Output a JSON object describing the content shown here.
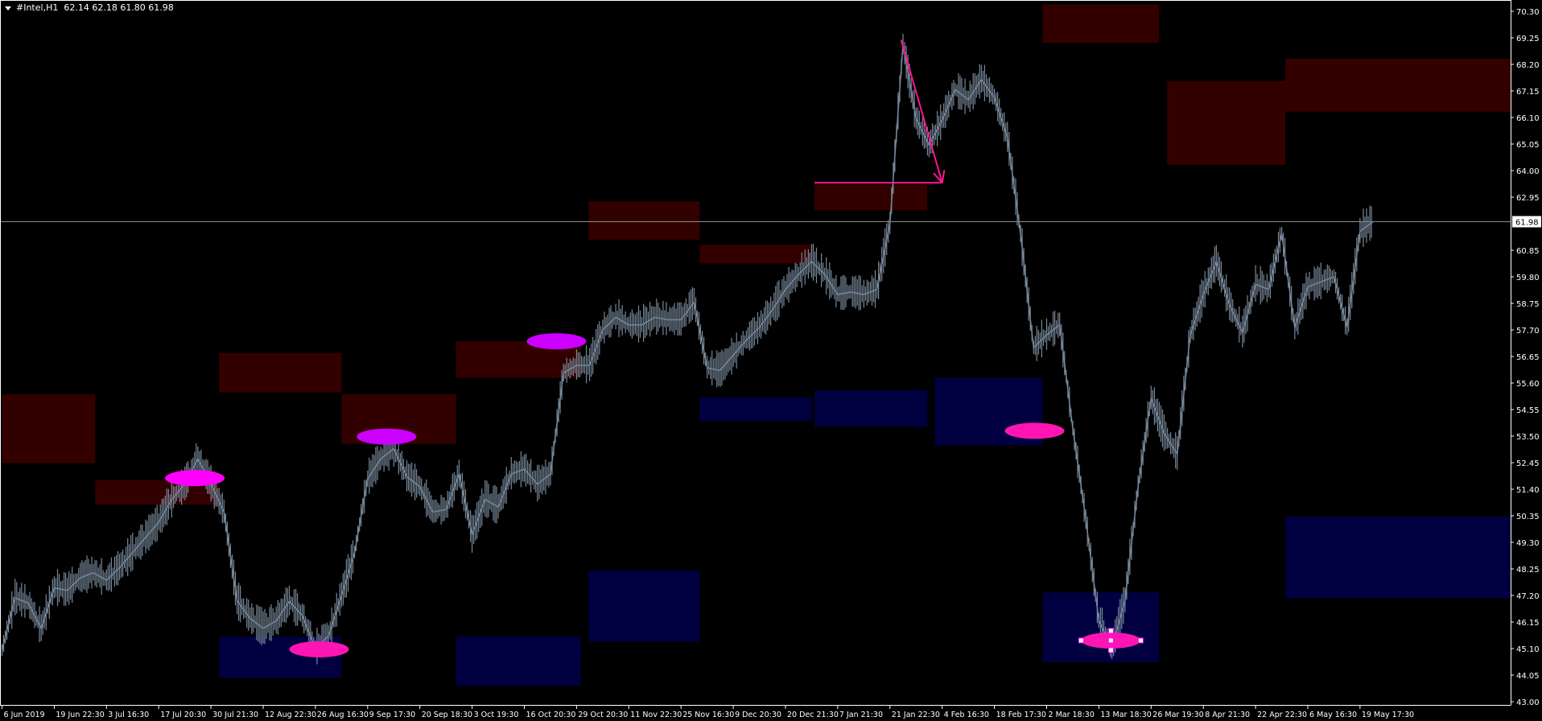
{
  "header": {
    "symbol": "#Intel,H1",
    "ohlc": "62.14 62.18 61.80 61.98"
  },
  "colors": {
    "background": "#000000",
    "price_line": "#778899",
    "up_highlight": "#00ff00",
    "supply_zone": "#330000",
    "demand_zone": "#000040",
    "magenta": "#ff00ff",
    "pink": "#ff14b4",
    "violet": "#cc00ff",
    "arrow": "#ff1493",
    "current_price_line": "#8c8c8c"
  },
  "chart_data": {
    "type": "line",
    "title": "#Intel,H1",
    "ylim": [
      43.0,
      70.3
    ],
    "y_ticks": [
      "70.30",
      "69.25",
      "68.20",
      "67.15",
      "66.10",
      "65.05",
      "64.00",
      "62.95",
      "60.85",
      "59.80",
      "58.75",
      "57.70",
      "56.65",
      "55.60",
      "54.55",
      "53.50",
      "52.45",
      "51.40",
      "50.35",
      "49.30",
      "48.25",
      "47.20",
      "46.15",
      "45.10",
      "44.05",
      "43.00"
    ],
    "current_price": "61.98",
    "x_ticks": [
      "6 Jun 2019",
      "19 Jun 22:30",
      "3 Jul 16:30",
      "17 Jul 20:30",
      "30 Jul 21:30",
      "12 Aug 22:30",
      "26 Aug 16:30",
      "9 Sep 17:30",
      "20 Sep 18:30",
      "3 Oct 19:30",
      "16 Oct 20:30",
      "29 Oct 20:30",
      "11 Nov 22:30",
      "25 Nov 16:30",
      "9 Dec 20:30",
      "20 Dec 21:30",
      "7 Jan 21:30",
      "21 Jan 22:30",
      "4 Feb 16:30",
      "18 Feb 17:30",
      "2 Mar 18:30",
      "13 Mar 18:30",
      "26 Mar 19:30",
      "8 Apr 21:30",
      "22 Apr 22:30",
      "6 May 16:30",
      "19 May 17:30"
    ],
    "price_by_interval": [
      [
        45.03,
        47.1,
        46.9,
        45.9
      ],
      [
        47.5,
        47.4,
        47.9,
        48.1
      ],
      [
        47.8,
        48.3,
        48.9,
        49.5
      ],
      [
        50.1,
        51.0,
        51.6,
        52.6
      ],
      [
        51.6,
        50.5,
        47.0,
        46.3
      ],
      [
        45.9,
        46.2,
        46.97,
        46.4
      ],
      [
        45.1,
        45.6,
        47.2,
        48.9
      ],
      [
        51.8,
        52.6,
        53.0,
        51.9
      ],
      [
        51.5,
        50.5,
        50.6,
        52.0
      ],
      [
        49.6,
        51.0,
        50.7,
        52.0
      ],
      [
        52.2,
        51.6,
        52.0,
        56.0
      ],
      [
        56.3,
        56.3,
        57.7,
        58.2
      ],
      [
        57.9,
        57.9,
        58.2,
        58.1
      ],
      [
        58.1,
        58.8,
        56.2,
        56.1
      ],
      [
        56.7,
        57.3,
        57.8,
        58.5
      ],
      [
        59.3,
        59.9,
        60.4,
        59.9
      ],
      [
        59.1,
        59.2,
        59.1,
        59.3
      ],
      [
        61.9,
        68.98,
        66.05,
        65.0
      ],
      [
        66.0,
        67.2,
        66.8,
        67.6
      ],
      [
        66.9,
        65.3,
        61.5,
        57.0
      ],
      [
        57.5,
        57.9,
        53.8,
        50.2
      ],
      [
        46.2,
        45.1,
        47.0,
        51.5
      ],
      [
        55.0,
        53.6,
        52.8,
        57.5
      ],
      [
        59.1,
        60.4,
        58.7,
        57.6
      ],
      [
        59.5,
        59.3,
        61.5,
        57.8
      ],
      [
        59.4,
        59.6,
        59.8,
        57.8
      ],
      [
        61.6,
        61.98
      ]
    ],
    "zones": [
      {
        "kind": "supply",
        "from": "2019-06-06",
        "to": "2019-06-30",
        "top": 55.15,
        "bottom": 52.43
      },
      {
        "kind": "supply",
        "from": "2019-06-30",
        "to": "2019-08-01",
        "top": 51.76,
        "bottom": 50.79
      },
      {
        "kind": "supply",
        "from": "2019-08-01",
        "to": "2019-09-02",
        "top": 56.78,
        "bottom": 55.23
      },
      {
        "kind": "supply",
        "from": "2019-09-02",
        "to": "2019-09-29",
        "top": 55.15,
        "bottom": 53.2
      },
      {
        "kind": "supply",
        "from": "2019-09-29",
        "to": "2019-10-30",
        "top": 57.25,
        "bottom": 55.81
      },
      {
        "kind": "supply",
        "from": "2019-11-01",
        "to": "2019-11-30",
        "top": 62.78,
        "bottom": 61.27
      },
      {
        "kind": "supply",
        "from": "2019-11-30",
        "to": "2019-12-29",
        "top": 61.07,
        "bottom": 60.33
      },
      {
        "kind": "supply",
        "from": "2019-12-30",
        "to": "2020-01-31",
        "top": 63.45,
        "bottom": 62.43
      },
      {
        "kind": "supply",
        "from": "2020-03-01",
        "to": "2020-03-28",
        "top": 70.57,
        "bottom": 69.05
      },
      {
        "kind": "supply",
        "from": "2020-03-30",
        "to": "2020-04-30",
        "top": 67.54,
        "bottom": 64.23
      },
      {
        "kind": "supply",
        "from": "2020-04-30",
        "to": "extends-right",
        "top": 68.43,
        "bottom": 66.33
      },
      {
        "kind": "demand",
        "from": "2019-08-01",
        "to": "2019-09-02",
        "top": 45.57,
        "bottom": 43.94
      },
      {
        "kind": "demand",
        "from": "2019-09-29",
        "to": "2019-10-30",
        "top": 45.57,
        "bottom": 43.63
      },
      {
        "kind": "demand",
        "from": "2019-11-01",
        "to": "2019-11-30",
        "top": 48.18,
        "bottom": 45.38
      },
      {
        "kind": "demand",
        "from": "2019-11-30",
        "to": "2019-12-29",
        "top": 55.03,
        "bottom": 54.1
      },
      {
        "kind": "demand",
        "from": "2019-12-30",
        "to": "2020-01-31",
        "top": 55.31,
        "bottom": 53.87
      },
      {
        "kind": "demand",
        "from": "2020-02-02",
        "to": "2020-03-01",
        "top": 55.81,
        "bottom": 53.13
      },
      {
        "kind": "demand",
        "from": "2020-03-01",
        "to": "2020-03-28",
        "top": 47.32,
        "bottom": 44.56
      },
      {
        "kind": "demand",
        "from": "2020-04-30",
        "to": "extends-right",
        "top": 50.32,
        "bottom": 47.09
      }
    ],
    "ellipses": [
      {
        "date": "2019-07-26",
        "price": 51.84,
        "color": "magenta",
        "selected": false
      },
      {
        "date": "2019-08-27",
        "price": 45.07,
        "color": "pink",
        "selected": false
      },
      {
        "date": "2019-09-13",
        "price": 53.48,
        "color": "violet",
        "selected": false
      },
      {
        "date": "2019-10-24",
        "price": 57.25,
        "color": "violet",
        "selected": false
      },
      {
        "date": "2020-02-28",
        "price": 53.71,
        "color": "pink",
        "selected": false
      },
      {
        "date": "2020-03-16",
        "price": 45.42,
        "color": "pink",
        "selected": true
      }
    ],
    "arrow": {
      "from": {
        "date": "2020-01-24",
        "price": 69.17
      },
      "to": {
        "date": "2020-02-04",
        "price": 63.52
      }
    },
    "hline": {
      "from": "2019-12-30",
      "to": "2020-02-04",
      "price": 63.52
    }
  }
}
